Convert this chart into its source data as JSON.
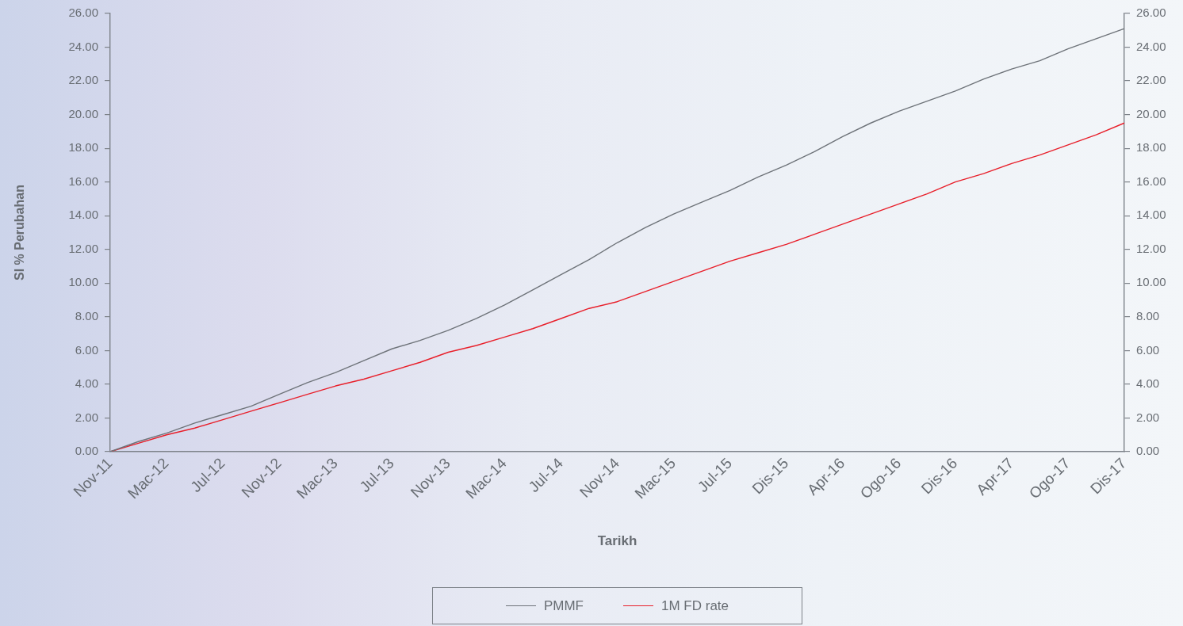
{
  "chart_data": {
    "type": "line",
    "xlabel": "Tarikh",
    "ylabel": "SI % Perubahan",
    "categories": [
      "Nov-11",
      null,
      "Mac-12",
      null,
      "Jul-12",
      null,
      "Nov-12",
      null,
      "Mac-13",
      null,
      "Jul-13",
      null,
      "Nov-13",
      null,
      "Mac-14",
      null,
      "Jul-14",
      null,
      "Nov-14",
      null,
      "Mac-15",
      null,
      "Jul-15",
      null,
      "Dis-15",
      null,
      "Apr-16",
      null,
      "Ogo-16",
      null,
      "Dis-16",
      null,
      "Apr-17",
      null,
      "Ogo-17",
      null,
      "Dis-17"
    ],
    "series": [
      {
        "name": "PMMF",
        "color": "#6e7379",
        "values": [
          0,
          0.6,
          1.1,
          1.7,
          2.2,
          2.7,
          3.4,
          4.1,
          4.7,
          5.4,
          6.1,
          6.6,
          7.2,
          7.9,
          8.7,
          9.6,
          10.5,
          11.4,
          12.4,
          13.3,
          14.1,
          14.8,
          15.5,
          16.3,
          17.0,
          17.8,
          18.7,
          19.5,
          20.2,
          20.8,
          21.4,
          22.1,
          22.7,
          23.2,
          23.9,
          24.5,
          25.1
        ]
      },
      {
        "name": "1M FD rate",
        "color": "#e81f2a",
        "values": [
          0,
          0.5,
          1.0,
          1.4,
          1.9,
          2.4,
          2.9,
          3.4,
          3.9,
          4.3,
          4.8,
          5.3,
          5.9,
          6.3,
          6.8,
          7.3,
          7.9,
          8.5,
          8.9,
          9.5,
          10.1,
          10.7,
          11.3,
          11.8,
          12.3,
          12.9,
          13.5,
          14.1,
          14.7,
          15.3,
          16.0,
          16.5,
          17.1,
          17.6,
          18.2,
          18.8,
          19.5
        ]
      }
    ],
    "ylim": [
      0,
      26
    ],
    "yticks": [
      {
        "value": 0,
        "label": "0.00"
      },
      {
        "value": 2,
        "label": "2.00"
      },
      {
        "value": 4,
        "label": "4.00"
      },
      {
        "value": 6,
        "label": "6.00"
      },
      {
        "value": 8,
        "label": "8.00"
      },
      {
        "value": 10,
        "label": "10.00"
      },
      {
        "value": 12,
        "label": "12.00"
      },
      {
        "value": 14,
        "label": "14.00"
      },
      {
        "value": 16,
        "label": "16.00"
      },
      {
        "value": 18,
        "label": "18.00"
      },
      {
        "value": 20,
        "label": "20.00"
      },
      {
        "value": 22,
        "label": "22.00"
      },
      {
        "value": 24,
        "label": "24.00"
      },
      {
        "value": 26,
        "label": "26.00"
      }
    ],
    "y2lim": [
      0,
      26
    ],
    "y2ticks": [
      {
        "value": 0,
        "label": "0.00"
      },
      {
        "value": 2,
        "label": "2.00"
      },
      {
        "value": 4,
        "label": "4.00"
      },
      {
        "value": 6,
        "label": "6.00"
      },
      {
        "value": 8,
        "label": "8.00"
      },
      {
        "value": 10,
        "label": "10.00"
      },
      {
        "value": 12,
        "label": "12.00"
      },
      {
        "value": 14,
        "label": "14.00"
      },
      {
        "value": 16,
        "label": "16.00"
      },
      {
        "value": 18,
        "label": "18.00"
      },
      {
        "value": 20,
        "label": "20.00"
      },
      {
        "value": 22,
        "label": "22.00"
      },
      {
        "value": 24,
        "label": "24.00"
      },
      {
        "value": 26,
        "label": "26.00"
      }
    ],
    "legend": "bottom",
    "marker": "none"
  }
}
